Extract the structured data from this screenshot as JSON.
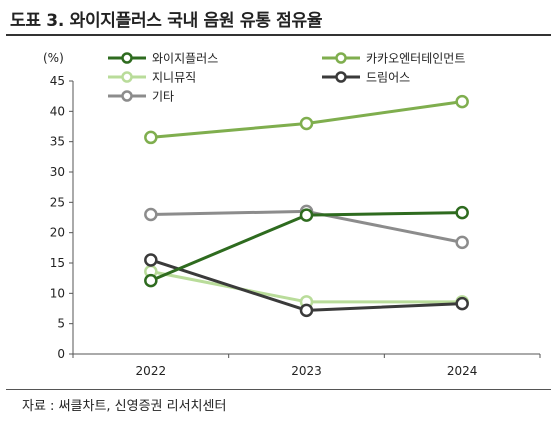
{
  "title": "도표 3. 와이지플러스 국내 음원 유통 점유율",
  "source": "자료 : 써클차트, 신영증권 리서치센터",
  "chart_data": {
    "type": "line",
    "title": "",
    "xlabel": "",
    "ylabel": "(%)",
    "categories": [
      "2022",
      "2023",
      "2024"
    ],
    "ylim": [
      0,
      45
    ],
    "yticks": [
      0,
      5,
      10,
      15,
      20,
      25,
      30,
      35,
      40,
      45
    ],
    "grid": false,
    "legend_position": "top",
    "series": [
      {
        "name": "와이지플러스",
        "color": "#2e6b1f",
        "values": [
          12.1,
          22.9,
          23.3
        ]
      },
      {
        "name": "카카오엔터테인먼트",
        "color": "#7fae4e",
        "values": [
          35.7,
          38.0,
          41.6
        ]
      },
      {
        "name": "지니뮤직",
        "color": "#b9dc9a",
        "values": [
          13.6,
          8.6,
          8.6
        ]
      },
      {
        "name": "드림어스",
        "color": "#3a3a3a",
        "values": [
          15.5,
          7.2,
          8.3
        ]
      },
      {
        "name": "기타",
        "color": "#8c8c8c",
        "values": [
          23.0,
          23.5,
          18.4
        ]
      }
    ]
  }
}
